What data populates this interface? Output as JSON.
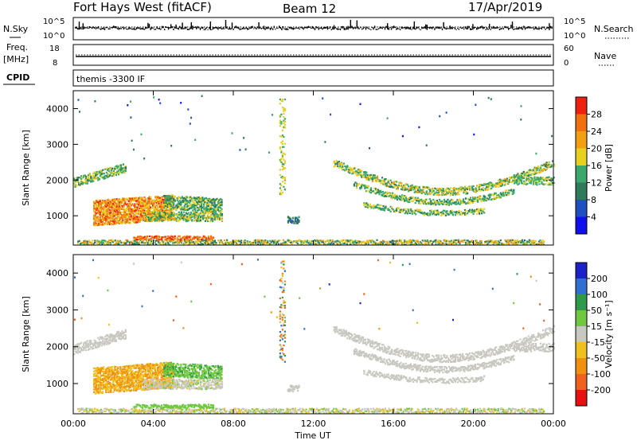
{
  "header": {
    "title": "Fort Hays West (fitACF)",
    "beam": "Beam 12",
    "date": "17/Apr/2019"
  },
  "status_panels": {
    "nsky_label": "N.Sky",
    "nsky_ticks": [
      "10^5",
      "10^0"
    ],
    "nsearch_label": "N.Search",
    "freq_label_1": "Freq.",
    "freq_label_2": "[MHz]",
    "freq_ticks": [
      "18",
      "8"
    ],
    "nave_ticks": [
      "60",
      "0"
    ],
    "nave_label": "Nave",
    "cpid_label": "CPID",
    "cpid_value": "themis -3300 IF"
  },
  "chart_data": [
    {
      "type": "heatmap",
      "name": "power",
      "ylabel": "Slant Range [km]",
      "xlabel": "",
      "x_ticks": [
        "00:00",
        "04:00",
        "08:00",
        "12:00",
        "16:00",
        "20:00",
        "00:00"
      ],
      "y_ticks": [
        1000,
        2000,
        3000,
        4000
      ],
      "xlim_hours": [
        0,
        24
      ],
      "ylim_km": [
        180,
        4500
      ],
      "colorbar_label": "Power [dB]",
      "colorbar_ticks": [
        4,
        8,
        12,
        16,
        20,
        24,
        28
      ],
      "colorbar_colors": [
        "#1010ee",
        "#2050c0",
        "#2e7a5a",
        "#3aa86a",
        "#e8d020",
        "#f0a010",
        "#f07010",
        "#ee2010"
      ]
    },
    {
      "type": "heatmap",
      "name": "velocity",
      "ylabel": "Slant Range [km]",
      "xlabel": "Time UT",
      "x_ticks": [
        "00:00",
        "04:00",
        "08:00",
        "12:00",
        "16:00",
        "20:00",
        "00:00"
      ],
      "y_ticks": [
        1000,
        2000,
        3000,
        4000
      ],
      "xlim_hours": [
        0,
        24
      ],
      "ylim_km": [
        180,
        4500
      ],
      "colorbar_label": "Velocity [m s⁻¹]",
      "colorbar_ticks": [
        200,
        100,
        50,
        15,
        -15,
        -50,
        -100,
        -200
      ],
      "colorbar_colors": [
        "#1a22c8",
        "#3070d0",
        "#2e9a4a",
        "#70c840",
        "#c8c8c0",
        "#f0c020",
        "#f09010",
        "#f06020",
        "#e81010"
      ]
    }
  ]
}
